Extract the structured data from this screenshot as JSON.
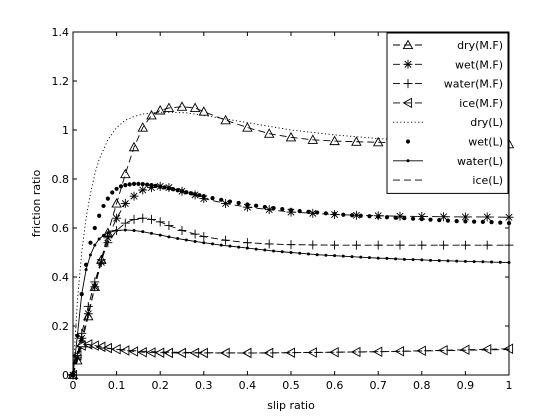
{
  "chart_data": {
    "type": "line",
    "xlabel": "slip ratio",
    "ylabel": "friction ratio",
    "xlim": [
      0,
      1
    ],
    "ylim": [
      0,
      1.4
    ],
    "xticks": [
      "0",
      "0.1",
      "0.2",
      "0.3",
      "0.4",
      "0.5",
      "0.6",
      "0.7",
      "0.8",
      "0.9",
      "1"
    ],
    "yticks": [
      "0",
      "0.2",
      "0.4",
      "0.6",
      "0.8",
      "1",
      "1.2",
      "1.4"
    ],
    "grid": false,
    "legend_position": "top-right",
    "series": [
      {
        "name": "dry(M.F)",
        "style": "dashed",
        "marker": "triangle-up",
        "x": [
          0,
          0.01,
          0.02,
          0.035,
          0.05,
          0.065,
          0.08,
          0.1,
          0.12,
          0.14,
          0.16,
          0.18,
          0.2,
          0.22,
          0.25,
          0.28,
          0.3,
          0.35,
          0.4,
          0.45,
          0.5,
          0.55,
          0.6,
          0.65,
          0.7,
          0.75,
          0.8,
          0.85,
          0.9,
          0.95,
          1.0
        ],
        "y": [
          0,
          0.06,
          0.13,
          0.24,
          0.36,
          0.47,
          0.58,
          0.7,
          0.82,
          0.93,
          1.01,
          1.06,
          1.08,
          1.09,
          1.095,
          1.09,
          1.075,
          1.04,
          1.01,
          0.985,
          0.97,
          0.96,
          0.955,
          0.952,
          0.95,
          0.948,
          0.946,
          0.945,
          0.944,
          0.943,
          0.942
        ]
      },
      {
        "name": "wet(M.F)",
        "style": "dashed",
        "marker": "star",
        "x": [
          0,
          0.01,
          0.02,
          0.035,
          0.05,
          0.065,
          0.08,
          0.1,
          0.12,
          0.14,
          0.16,
          0.18,
          0.2,
          0.22,
          0.25,
          0.28,
          0.3,
          0.35,
          0.4,
          0.45,
          0.5,
          0.55,
          0.6,
          0.65,
          0.7,
          0.75,
          0.8,
          0.85,
          0.9,
          0.95,
          1.0
        ],
        "y": [
          0,
          0.07,
          0.15,
          0.25,
          0.36,
          0.46,
          0.56,
          0.64,
          0.7,
          0.73,
          0.755,
          0.765,
          0.77,
          0.765,
          0.75,
          0.735,
          0.72,
          0.7,
          0.685,
          0.675,
          0.665,
          0.66,
          0.655,
          0.652,
          0.65,
          0.648,
          0.647,
          0.646,
          0.645,
          0.645,
          0.644
        ]
      },
      {
        "name": "water(M.F)",
        "style": "dashed",
        "marker": "plus",
        "x": [
          0,
          0.01,
          0.02,
          0.035,
          0.05,
          0.065,
          0.08,
          0.1,
          0.12,
          0.14,
          0.16,
          0.18,
          0.2,
          0.22,
          0.25,
          0.28,
          0.3,
          0.35,
          0.4,
          0.45,
          0.5,
          0.55,
          0.6,
          0.65,
          0.7,
          0.75,
          0.8,
          0.85,
          0.9,
          0.95,
          1.0
        ],
        "y": [
          0,
          0.08,
          0.17,
          0.28,
          0.38,
          0.47,
          0.54,
          0.59,
          0.62,
          0.635,
          0.64,
          0.635,
          0.625,
          0.61,
          0.59,
          0.575,
          0.565,
          0.55,
          0.54,
          0.535,
          0.532,
          0.531,
          0.53,
          0.53,
          0.53,
          0.53,
          0.53,
          0.53,
          0.53,
          0.53,
          0.53
        ]
      },
      {
        "name": "ice(M.F)",
        "style": "dashed",
        "marker": "triangle-left",
        "x": [
          0,
          0.01,
          0.02,
          0.035,
          0.05,
          0.065,
          0.08,
          0.1,
          0.12,
          0.14,
          0.16,
          0.18,
          0.2,
          0.22,
          0.25,
          0.28,
          0.3,
          0.35,
          0.4,
          0.45,
          0.5,
          0.55,
          0.6,
          0.65,
          0.7,
          0.75,
          0.8,
          0.85,
          0.9,
          0.95,
          1.0
        ],
        "y": [
          0,
          0.08,
          0.12,
          0.125,
          0.12,
          0.115,
          0.11,
          0.105,
          0.1,
          0.096,
          0.093,
          0.092,
          0.091,
          0.09,
          0.09,
          0.09,
          0.09,
          0.09,
          0.09,
          0.09,
          0.091,
          0.092,
          0.093,
          0.094,
          0.095,
          0.097,
          0.099,
          0.101,
          0.103,
          0.105,
          0.107
        ]
      },
      {
        "name": "dry(L)",
        "style": "dotted",
        "marker": "none",
        "x": [
          0,
          0.005,
          0.01,
          0.02,
          0.03,
          0.04,
          0.05,
          0.06,
          0.08,
          0.1,
          0.12,
          0.14,
          0.16,
          0.18,
          0.2,
          0.23,
          0.26,
          0.3,
          0.35,
          0.4,
          0.45,
          0.5,
          0.55,
          0.6,
          0.7,
          0.8,
          0.9,
          1.0
        ],
        "y": [
          0,
          0.15,
          0.3,
          0.5,
          0.64,
          0.74,
          0.82,
          0.88,
          0.96,
          1.01,
          1.04,
          1.055,
          1.065,
          1.07,
          1.072,
          1.072,
          1.07,
          1.06,
          1.045,
          1.03,
          1.015,
          1.0,
          0.99,
          0.98,
          0.965,
          0.955,
          0.948,
          0.942
        ]
      },
      {
        "name": "wet(L)",
        "style": "none",
        "marker": "dot",
        "x": [
          0,
          0.01,
          0.02,
          0.03,
          0.04,
          0.05,
          0.06,
          0.07,
          0.08,
          0.09,
          0.1,
          0.11,
          0.12,
          0.13,
          0.14,
          0.15,
          0.16,
          0.17,
          0.18,
          0.19,
          0.2,
          0.21,
          0.22,
          0.23,
          0.24,
          0.25,
          0.26,
          0.27,
          0.28,
          0.29,
          0.3,
          0.32,
          0.34,
          0.36,
          0.38,
          0.4,
          0.42,
          0.44,
          0.46,
          0.48,
          0.5,
          0.52,
          0.54,
          0.56,
          0.58,
          0.6,
          0.62,
          0.64,
          0.66,
          0.68,
          0.7,
          0.72,
          0.74,
          0.76,
          0.78,
          0.8,
          0.82,
          0.84,
          0.86,
          0.88,
          0.9,
          0.92,
          0.94,
          0.96,
          0.98,
          1.0
        ],
        "y": [
          0,
          0.16,
          0.33,
          0.45,
          0.54,
          0.6,
          0.65,
          0.69,
          0.72,
          0.745,
          0.76,
          0.77,
          0.775,
          0.778,
          0.78,
          0.78,
          0.779,
          0.777,
          0.775,
          0.772,
          0.769,
          0.766,
          0.762,
          0.758,
          0.754,
          0.75,
          0.746,
          0.742,
          0.738,
          0.734,
          0.73,
          0.722,
          0.715,
          0.708,
          0.702,
          0.696,
          0.691,
          0.686,
          0.681,
          0.677,
          0.673,
          0.669,
          0.666,
          0.663,
          0.66,
          0.657,
          0.654,
          0.652,
          0.65,
          0.648,
          0.646,
          0.644,
          0.642,
          0.64,
          0.638,
          0.636,
          0.634,
          0.632,
          0.63,
          0.628,
          0.627,
          0.626,
          0.625,
          0.624,
          0.622,
          0.62
        ]
      },
      {
        "name": "water(L)",
        "style": "solid",
        "marker": "small-dot",
        "x": [
          0,
          0.01,
          0.02,
          0.03,
          0.04,
          0.05,
          0.06,
          0.07,
          0.08,
          0.1,
          0.12,
          0.14,
          0.16,
          0.18,
          0.2,
          0.22,
          0.24,
          0.26,
          0.28,
          0.3,
          0.32,
          0.34,
          0.36,
          0.38,
          0.4,
          0.42,
          0.44,
          0.46,
          0.48,
          0.5,
          0.52,
          0.54,
          0.56,
          0.58,
          0.6,
          0.62,
          0.64,
          0.66,
          0.68,
          0.7,
          0.72,
          0.74,
          0.76,
          0.78,
          0.8,
          0.82,
          0.84,
          0.86,
          0.88,
          0.9,
          0.92,
          0.94,
          0.96,
          0.98,
          1.0
        ],
        "y": [
          0,
          0.16,
          0.33,
          0.43,
          0.49,
          0.53,
          0.555,
          0.57,
          0.58,
          0.59,
          0.592,
          0.59,
          0.585,
          0.578,
          0.571,
          0.564,
          0.557,
          0.551,
          0.545,
          0.54,
          0.535,
          0.53,
          0.526,
          0.522,
          0.518,
          0.514,
          0.51,
          0.506,
          0.503,
          0.5,
          0.497,
          0.494,
          0.491,
          0.489,
          0.487,
          0.485,
          0.483,
          0.481,
          0.479,
          0.477,
          0.476,
          0.474,
          0.472,
          0.471,
          0.47,
          0.468,
          0.467,
          0.466,
          0.465,
          0.464,
          0.463,
          0.462,
          0.461,
          0.46,
          0.459
        ]
      },
      {
        "name": "ice(L)",
        "style": "dashed",
        "marker": "none",
        "x": [
          0,
          0.005,
          0.01,
          0.02,
          0.03,
          0.05,
          0.08,
          0.12,
          0.16,
          0.2,
          0.3,
          0.4,
          0.5,
          0.6,
          0.7,
          0.8,
          0.9,
          1.0
        ],
        "y": [
          0,
          0.06,
          0.09,
          0.11,
          0.115,
          0.113,
          0.108,
          0.102,
          0.097,
          0.094,
          0.091,
          0.09,
          0.091,
          0.093,
          0.095,
          0.098,
          0.101,
          0.104
        ]
      }
    ]
  }
}
